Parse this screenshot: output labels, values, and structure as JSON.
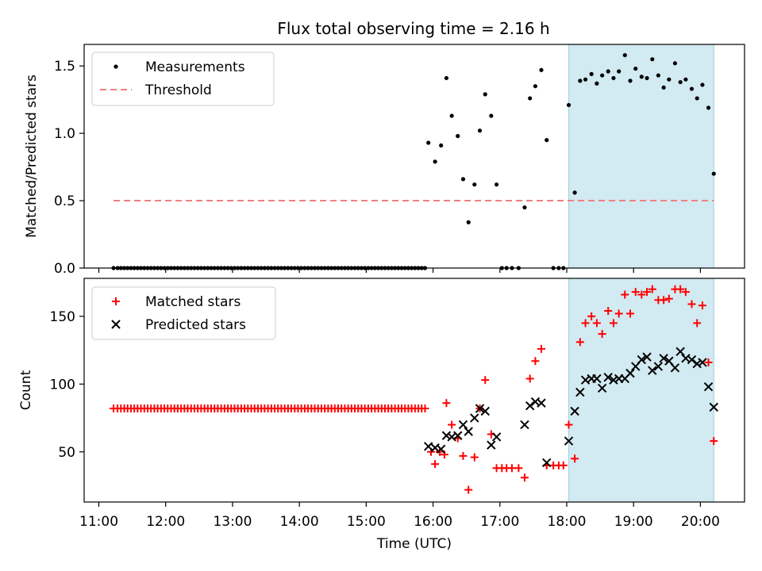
{
  "figure": {
    "title": "Flux total observing time = 2.16 h",
    "xlabel": "Time (UTC)",
    "highlight_color": "#add8e6",
    "highlight_start_h": 18.03,
    "highlight_end_h": 20.2
  },
  "chart_data": [
    {
      "type": "scatter",
      "ylabel": "Matched/Predicted stars",
      "ylim": [
        0,
        1.66
      ],
      "yticks": [
        0.0,
        0.5,
        1.0,
        1.5
      ],
      "ytick_labels": [
        "0.0",
        "0.5",
        "1.0",
        "1.5"
      ],
      "legend_loc": "upper-left",
      "threshold": {
        "name": "Threshold",
        "y": 0.5,
        "x_start": 11.22,
        "x_end": 20.2,
        "color": "#f08080",
        "style": "dashed"
      },
      "series": [
        {
          "name": "Measurements",
          "color": "#000000",
          "marker": "dot",
          "x": [
            11.22,
            11.28,
            11.33,
            11.38,
            11.43,
            11.48,
            11.53,
            11.58,
            11.63,
            11.68,
            11.73,
            11.78,
            11.83,
            11.88,
            11.93,
            11.98,
            12.03,
            12.08,
            12.13,
            12.18,
            12.23,
            12.28,
            12.33,
            12.38,
            12.43,
            12.48,
            12.53,
            12.58,
            12.63,
            12.68,
            12.73,
            12.78,
            12.83,
            12.88,
            12.93,
            12.98,
            13.03,
            13.08,
            13.13,
            13.18,
            13.23,
            13.28,
            13.33,
            13.38,
            13.43,
            13.48,
            13.53,
            13.58,
            13.63,
            13.68,
            13.73,
            13.78,
            13.83,
            13.88,
            13.93,
            13.98,
            14.03,
            14.08,
            14.13,
            14.18,
            14.23,
            14.28,
            14.33,
            14.38,
            14.43,
            14.48,
            14.53,
            14.58,
            14.63,
            14.68,
            14.73,
            14.78,
            14.83,
            14.88,
            14.93,
            14.98,
            15.03,
            15.08,
            15.13,
            15.18,
            15.23,
            15.28,
            15.33,
            15.38,
            15.43,
            15.48,
            15.53,
            15.58,
            15.63,
            15.68,
            15.73,
            15.78,
            15.83,
            15.88,
            15.93,
            16.03,
            16.12,
            16.2,
            16.28,
            16.37,
            16.45,
            16.53,
            16.62,
            16.7,
            16.78,
            16.87,
            16.95,
            17.03,
            17.1,
            17.18,
            17.28,
            17.37,
            17.45,
            17.53,
            17.62,
            17.7,
            17.8,
            17.88,
            17.95,
            18.03,
            18.12,
            18.2,
            18.28,
            18.37,
            18.45,
            18.53,
            18.62,
            18.7,
            18.78,
            18.87,
            18.95,
            19.03,
            19.12,
            19.2,
            19.28,
            19.37,
            19.45,
            19.53,
            19.62,
            19.7,
            19.78,
            19.87,
            19.95,
            20.03,
            20.12,
            20.2
          ],
          "y": [
            0,
            0,
            0,
            0,
            0,
            0,
            0,
            0,
            0,
            0,
            0,
            0,
            0,
            0,
            0,
            0,
            0,
            0,
            0,
            0,
            0,
            0,
            0,
            0,
            0,
            0,
            0,
            0,
            0,
            0,
            0,
            0,
            0,
            0,
            0,
            0,
            0,
            0,
            0,
            0,
            0,
            0,
            0,
            0,
            0,
            0,
            0,
            0,
            0,
            0,
            0,
            0,
            0,
            0,
            0,
            0,
            0,
            0,
            0,
            0,
            0,
            0,
            0,
            0,
            0,
            0,
            0,
            0,
            0,
            0,
            0,
            0,
            0,
            0,
            0,
            0,
            0,
            0,
            0,
            0,
            0,
            0,
            0,
            0,
            0,
            0,
            0,
            0,
            0,
            0,
            0,
            0,
            0,
            0,
            0.93,
            0.79,
            0.91,
            1.41,
            1.13,
            0.98,
            0.66,
            0.34,
            0.62,
            1.02,
            1.29,
            1.13,
            0.62,
            0,
            0,
            0,
            0,
            0.45,
            1.26,
            1.35,
            1.47,
            0.95,
            0,
            0,
            0,
            1.21,
            0.56,
            1.39,
            1.4,
            1.44,
            1.37,
            1.43,
            1.46,
            1.41,
            1.46,
            1.58,
            1.39,
            1.48,
            1.42,
            1.41,
            1.55,
            1.43,
            1.34,
            1.4,
            1.52,
            1.38,
            1.4,
            1.33,
            1.26,
            1.36,
            1.19,
            0.7
          ]
        }
      ]
    },
    {
      "type": "scatter",
      "ylabel": "Count",
      "ylim": [
        13,
        178
      ],
      "yticks": [
        50,
        100,
        150
      ],
      "ytick_labels": [
        "50",
        "100",
        "150"
      ],
      "legend_loc": "upper-left",
      "series": [
        {
          "name": "Matched stars",
          "color": "#ff0000",
          "marker": "plus",
          "x": [
            11.22,
            11.28,
            11.33,
            11.38,
            11.43,
            11.48,
            11.53,
            11.58,
            11.63,
            11.68,
            11.73,
            11.78,
            11.83,
            11.88,
            11.93,
            11.98,
            12.03,
            12.08,
            12.13,
            12.18,
            12.23,
            12.28,
            12.33,
            12.38,
            12.43,
            12.48,
            12.53,
            12.58,
            12.63,
            12.68,
            12.73,
            12.78,
            12.83,
            12.88,
            12.93,
            12.98,
            13.03,
            13.08,
            13.13,
            13.18,
            13.23,
            13.28,
            13.33,
            13.38,
            13.43,
            13.48,
            13.53,
            13.58,
            13.63,
            13.68,
            13.73,
            13.78,
            13.83,
            13.88,
            13.93,
            13.98,
            14.03,
            14.08,
            14.13,
            14.18,
            14.23,
            14.28,
            14.33,
            14.38,
            14.43,
            14.48,
            14.53,
            14.58,
            14.63,
            14.68,
            14.73,
            14.78,
            14.83,
            14.88,
            14.93,
            14.98,
            15.03,
            15.08,
            15.13,
            15.18,
            15.23,
            15.28,
            15.33,
            15.38,
            15.43,
            15.48,
            15.53,
            15.58,
            15.63,
            15.68,
            15.73,
            15.78,
            15.83,
            15.88,
            15.97,
            16.03,
            16.1,
            16.17,
            16.2,
            16.28,
            16.37,
            16.45,
            16.53,
            16.62,
            16.7,
            16.78,
            16.87,
            16.95,
            17.03,
            17.1,
            17.18,
            17.28,
            17.37,
            17.45,
            17.53,
            17.62,
            17.7,
            17.8,
            17.88,
            17.95,
            18.03,
            18.12,
            18.2,
            18.28,
            18.37,
            18.45,
            18.53,
            18.62,
            18.7,
            18.78,
            18.87,
            18.95,
            19.03,
            19.12,
            19.2,
            19.28,
            19.37,
            19.45,
            19.53,
            19.62,
            19.7,
            19.78,
            19.87,
            19.95,
            20.03,
            20.12,
            20.2
          ],
          "y": [
            82,
            82,
            82,
            82,
            82,
            82,
            82,
            82,
            82,
            82,
            82,
            82,
            82,
            82,
            82,
            82,
            82,
            82,
            82,
            82,
            82,
            82,
            82,
            82,
            82,
            82,
            82,
            82,
            82,
            82,
            82,
            82,
            82,
            82,
            82,
            82,
            82,
            82,
            82,
            82,
            82,
            82,
            82,
            82,
            82,
            82,
            82,
            82,
            82,
            82,
            82,
            82,
            82,
            82,
            82,
            82,
            82,
            82,
            82,
            82,
            82,
            82,
            82,
            82,
            82,
            82,
            82,
            82,
            82,
            82,
            82,
            82,
            82,
            82,
            82,
            82,
            82,
            82,
            82,
            82,
            82,
            82,
            82,
            82,
            82,
            82,
            82,
            82,
            82,
            82,
            82,
            82,
            82,
            82,
            50,
            41,
            50,
            48,
            86,
            70,
            60,
            47,
            22,
            46,
            82,
            103,
            63,
            38,
            38,
            38,
            38,
            38,
            31,
            104,
            117,
            126,
            40,
            40,
            40,
            40,
            70,
            45,
            131,
            145,
            150,
            145,
            137,
            154,
            145,
            152,
            166,
            152,
            168,
            166,
            168,
            170,
            162,
            162,
            163,
            170,
            170,
            168,
            159,
            145,
            158,
            116,
            58
          ]
        },
        {
          "name": "Predicted stars",
          "color": "#000000",
          "marker": "x",
          "x": [
            15.93,
            16.03,
            16.12,
            16.2,
            16.28,
            16.37,
            16.45,
            16.53,
            16.62,
            16.7,
            16.78,
            16.87,
            16.95,
            17.37,
            17.45,
            17.53,
            17.62,
            17.7,
            18.03,
            18.12,
            18.2,
            18.28,
            18.37,
            18.45,
            18.53,
            18.62,
            18.7,
            18.78,
            18.87,
            18.95,
            19.03,
            19.12,
            19.2,
            19.28,
            19.37,
            19.45,
            19.53,
            19.62,
            19.7,
            19.78,
            19.87,
            19.95,
            20.03,
            20.12,
            20.2
          ],
          "y": [
            54,
            53,
            52,
            62,
            61,
            62,
            70,
            65,
            75,
            82,
            80,
            55,
            61,
            70,
            84,
            87,
            86,
            42,
            58,
            80,
            94,
            103,
            104,
            104,
            97,
            105,
            103,
            104,
            104,
            108,
            113,
            118,
            120,
            110,
            113,
            119,
            117,
            112,
            124,
            119,
            118,
            115,
            116,
            98,
            83
          ]
        }
      ],
      "x_ticks_h": [
        11,
        12,
        13,
        14,
        15,
        16,
        17,
        18,
        19,
        20
      ],
      "x_tick_labels": [
        "11:00",
        "12:00",
        "13:00",
        "14:00",
        "15:00",
        "16:00",
        "17:00",
        "18:00",
        "19:00",
        "20:00"
      ],
      "xlim_h": [
        10.78,
        20.66
      ]
    }
  ]
}
